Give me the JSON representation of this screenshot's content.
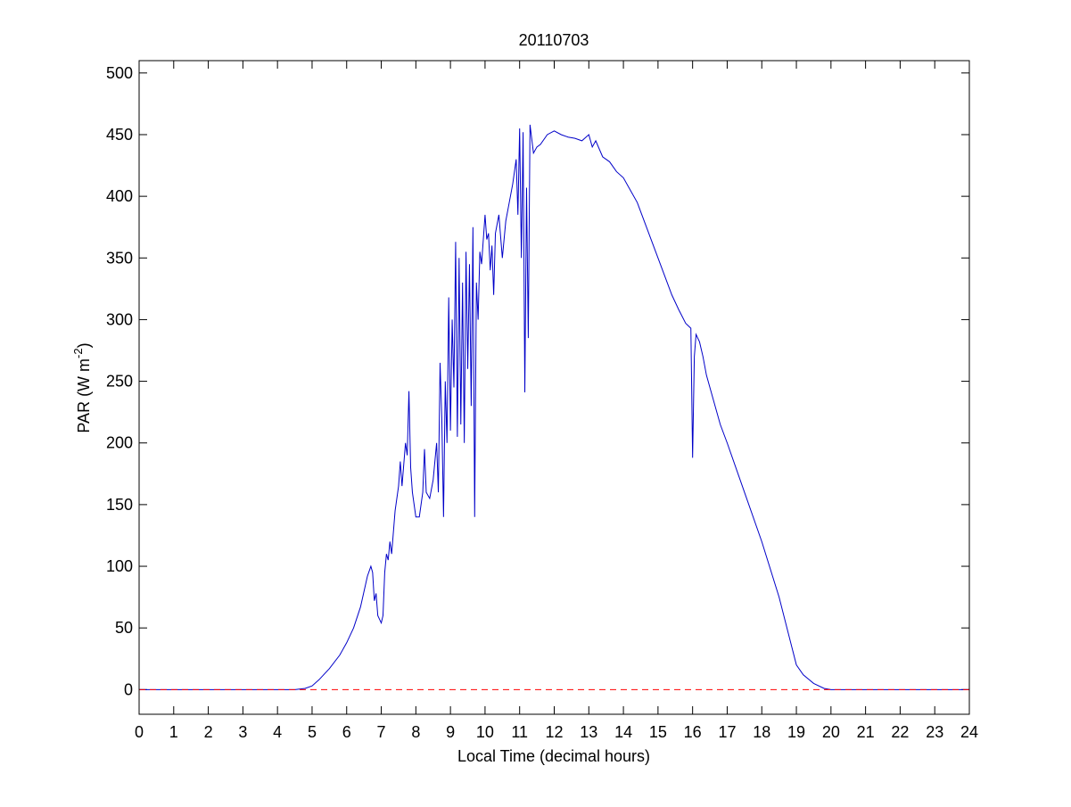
{
  "chart_data": {
    "type": "line",
    "title": "20110703",
    "x_label": "Local Time (decimal hours)",
    "y_label": {
      "main": "PAR (W m",
      "sup": "-2",
      "end": ")"
    },
    "xlim": [
      0,
      24
    ],
    "xticks": [
      0,
      1,
      2,
      3,
      4,
      5,
      6,
      7,
      8,
      9,
      10,
      11,
      12,
      13,
      14,
      15,
      16,
      17,
      18,
      19,
      20,
      21,
      22,
      23,
      24
    ],
    "ylim": [
      -20,
      510
    ],
    "yticks": [
      0,
      50,
      100,
      150,
      200,
      250,
      300,
      350,
      400,
      450,
      500
    ],
    "grid": false,
    "reference_line": {
      "value": 0,
      "color": "#ff0000"
    },
    "series": [
      {
        "color": "#0000c8",
        "x": [
          0,
          4.5,
          4.8,
          5.0,
          5.2,
          5.5,
          5.8,
          6.0,
          6.2,
          6.4,
          6.6,
          6.7,
          6.75,
          6.8,
          6.85,
          6.9,
          7.0,
          7.05,
          7.1,
          7.15,
          7.2,
          7.25,
          7.3,
          7.4,
          7.5,
          7.55,
          7.6,
          7.7,
          7.75,
          7.8,
          7.85,
          7.9,
          8.0,
          8.1,
          8.2,
          8.25,
          8.3,
          8.4,
          8.5,
          8.6,
          8.65,
          8.7,
          8.75,
          8.8,
          8.85,
          8.9,
          8.95,
          9.0,
          9.05,
          9.1,
          9.15,
          9.2,
          9.25,
          9.3,
          9.35,
          9.4,
          9.45,
          9.5,
          9.55,
          9.6,
          9.65,
          9.7,
          9.75,
          9.8,
          9.85,
          9.9,
          10.0,
          10.05,
          10.1,
          10.15,
          10.2,
          10.25,
          10.3,
          10.4,
          10.5,
          10.6,
          10.7,
          10.8,
          10.9,
          10.95,
          11.0,
          11.05,
          11.1,
          11.15,
          11.2,
          11.25,
          11.3,
          11.4,
          11.5,
          11.6,
          11.8,
          12.0,
          12.2,
          12.4,
          12.6,
          12.8,
          13.0,
          13.1,
          13.2,
          13.4,
          13.6,
          13.8,
          14.0,
          14.2,
          14.4,
          14.6,
          14.8,
          15.0,
          15.2,
          15.4,
          15.6,
          15.8,
          15.95,
          16.0,
          16.05,
          16.1,
          16.2,
          16.3,
          16.4,
          16.6,
          16.8,
          17.0,
          17.5,
          18.0,
          18.5,
          19.0,
          19.2,
          19.5,
          19.8,
          20.0,
          24
        ],
        "values": [
          0,
          0,
          1,
          3,
          8,
          17,
          28,
          38,
          50,
          67,
          92,
          100,
          95,
          72,
          78,
          60,
          54,
          60,
          95,
          110,
          105,
          120,
          110,
          145,
          165,
          185,
          165,
          200,
          190,
          242,
          180,
          160,
          140,
          140,
          160,
          195,
          160,
          155,
          170,
          200,
          160,
          265,
          220,
          140,
          250,
          200,
          318,
          210,
          300,
          245,
          363,
          205,
          350,
          215,
          330,
          200,
          355,
          260,
          345,
          230,
          375,
          140,
          330,
          300,
          355,
          345,
          385,
          365,
          370,
          340,
          360,
          320,
          370,
          385,
          350,
          380,
          395,
          410,
          430,
          385,
          455,
          350,
          452,
          241,
          407,
          285,
          458,
          435,
          440,
          442,
          450,
          453,
          450,
          448,
          447,
          445,
          450,
          440,
          445,
          432,
          428,
          420,
          415,
          405,
          395,
          380,
          365,
          350,
          335,
          320,
          308,
          297,
          293,
          188,
          270,
          288,
          282,
          270,
          255,
          235,
          215,
          200,
          160,
          120,
          75,
          20,
          12,
          5,
          1,
          0,
          0
        ]
      }
    ]
  }
}
